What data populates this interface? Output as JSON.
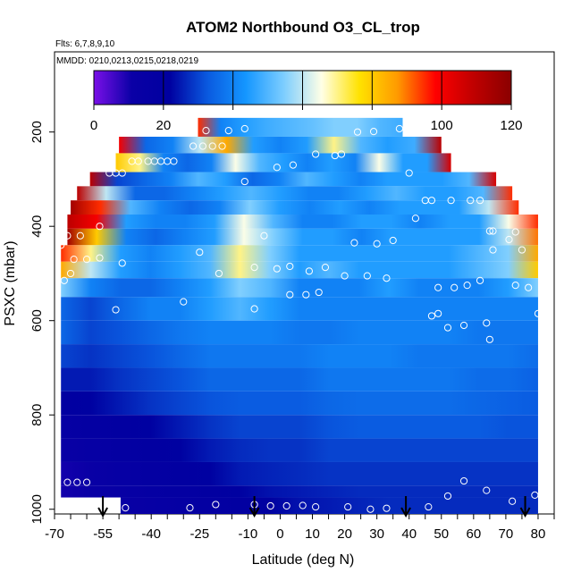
{
  "chart_data": {
    "type": "heatmap",
    "title": "ATOM2 Northbound O3_CL_trop",
    "subtitle_flights": "Flts: 6,7,8,9,10",
    "subtitle_dates": "MMDD: 0210,0213,0215,0218,0219",
    "xlabel": "Latitude (deg N)",
    "ylabel": "PSXC (mbar)",
    "xlim": [
      -70,
      85
    ],
    "ylim": [
      1010,
      30
    ],
    "x_ticks": [
      -70,
      -55,
      -40,
      -25,
      -10,
      0,
      10,
      20,
      30,
      40,
      50,
      60,
      70,
      80
    ],
    "x_minor_step": 5,
    "y_ticks": [
      200,
      400,
      600,
      800,
      1000
    ],
    "colorbar": {
      "min": 0,
      "max": 120,
      "ticks": [
        0,
        20,
        40,
        60,
        80,
        100,
        120
      ],
      "colors": [
        "#7a10e8",
        "#0a00a6",
        "#0000a0",
        "#0a5ae0",
        "#1496ff",
        "#7ccdff",
        "#ffffe6",
        "#ffe200",
        "#ff9a00",
        "#ff0000",
        "#c00000",
        "#8a0000"
      ]
    },
    "bands": [
      {
        "p_top": 170,
        "p_bot": 210,
        "x0": -25.5,
        "x1": 38,
        "values": [
          95,
          40,
          45,
          48,
          50,
          52,
          55,
          55,
          50,
          48
        ]
      },
      {
        "p_top": 210,
        "p_bot": 245,
        "x0": -50,
        "x1": 50,
        "values": [
          100,
          35,
          40,
          60,
          85,
          45,
          40,
          45,
          70,
          50,
          45,
          48,
          110
        ]
      },
      {
        "p_top": 245,
        "p_bot": 285,
        "x0": -51,
        "x1": 53,
        "values": [
          80,
          70,
          40,
          35,
          40,
          65,
          50,
          45,
          40,
          45,
          40,
          65,
          45,
          45,
          105
        ]
      },
      {
        "p_top": 285,
        "p_bot": 315,
        "x0": -59,
        "x1": 67,
        "values": [
          110,
          30,
          35,
          40,
          50,
          45,
          35,
          40,
          50,
          45,
          40,
          45,
          45,
          45,
          50,
          105
        ]
      },
      {
        "p_top": 315,
        "p_bot": 345,
        "x0": -63,
        "x1": 72,
        "values": [
          110,
          60,
          35,
          35,
          40,
          45,
          50,
          45,
          40,
          40,
          45,
          50,
          45,
          45,
          50,
          95
        ]
      },
      {
        "p_top": 345,
        "p_bot": 375,
        "x0": -65,
        "x1": 74,
        "values": [
          115,
          95,
          50,
          40,
          35,
          40,
          55,
          45,
          40,
          45,
          40,
          45,
          45,
          45,
          60,
          95
        ]
      },
      {
        "p_top": 375,
        "p_bot": 405,
        "x0": -66,
        "x1": 80,
        "values": [
          110,
          100,
          45,
          40,
          40,
          45,
          65,
          50,
          40,
          40,
          45,
          45,
          40,
          45,
          45,
          65,
          95
        ]
      },
      {
        "p_top": 405,
        "p_bot": 440,
        "x0": -66,
        "x1": 80,
        "values": [
          115,
          80,
          40,
          35,
          40,
          45,
          65,
          55,
          45,
          45,
          40,
          45,
          45,
          45,
          45,
          60,
          90
        ]
      },
      {
        "p_top": 440,
        "p_bot": 475,
        "x0": -68,
        "x1": 80,
        "values": [
          95,
          70,
          45,
          40,
          45,
          50,
          70,
          55,
          45,
          45,
          45,
          45,
          45,
          45,
          50,
          55,
          85
        ]
      },
      {
        "p_top": 475,
        "p_bot": 510,
        "x0": -68,
        "x1": 80,
        "values": [
          85,
          60,
          45,
          40,
          45,
          50,
          70,
          55,
          45,
          50,
          45,
          45,
          45,
          45,
          50,
          55,
          80
        ]
      },
      {
        "p_top": 510,
        "p_bot": 550,
        "x0": -68,
        "x1": 80,
        "values": [
          55,
          40,
          35,
          35,
          40,
          45,
          55,
          50,
          40,
          40,
          40,
          45,
          40,
          40,
          40,
          45,
          55
        ]
      },
      {
        "p_top": 550,
        "p_bot": 600,
        "x0": -68,
        "x1": 80,
        "values": [
          35,
          30,
          35,
          40,
          40,
          45,
          50,
          45,
          40,
          40,
          40,
          40,
          40,
          40,
          40,
          40,
          40
        ]
      },
      {
        "p_top": 600,
        "p_bot": 650,
        "x0": -68,
        "x1": 80,
        "values": [
          35,
          30,
          32,
          35,
          38,
          40,
          40,
          40,
          38,
          38,
          40,
          40,
          40,
          40,
          38,
          38,
          38
        ]
      },
      {
        "p_top": 650,
        "p_bot": 700,
        "x0": -68,
        "x1": 80,
        "values": [
          30,
          28,
          30,
          32,
          35,
          38,
          38,
          38,
          38,
          40,
          40,
          40,
          38,
          38,
          38,
          38,
          36
        ]
      },
      {
        "p_top": 700,
        "p_bot": 750,
        "x0": -68,
        "x1": 80,
        "values": [
          25,
          25,
          28,
          30,
          32,
          35,
          35,
          35,
          35,
          38,
          38,
          38,
          38,
          38,
          36,
          36,
          34
        ]
      },
      {
        "p_top": 750,
        "p_bot": 800,
        "x0": -68,
        "x1": 80,
        "values": [
          20,
          22,
          25,
          28,
          30,
          32,
          33,
          33,
          33,
          35,
          36,
          36,
          36,
          36,
          35,
          34,
          33
        ]
      },
      {
        "p_top": 800,
        "p_bot": 850,
        "x0": -68,
        "x1": 80,
        "values": [
          15,
          18,
          20,
          22,
          25,
          28,
          30,
          30,
          30,
          32,
          33,
          33,
          33,
          33,
          33,
          32,
          32
        ]
      },
      {
        "p_top": 850,
        "p_bot": 900,
        "x0": -68,
        "x1": 80,
        "values": [
          12,
          15,
          18,
          20,
          22,
          25,
          27,
          28,
          28,
          30,
          30,
          30,
          30,
          30,
          30,
          30,
          30
        ]
      },
      {
        "p_top": 900,
        "p_bot": 950,
        "x0": -68,
        "x1": 80,
        "values": [
          10,
          12,
          15,
          18,
          20,
          22,
          25,
          26,
          27,
          28,
          28,
          28,
          28,
          28,
          28,
          28,
          28
        ]
      },
      {
        "p_top": 950,
        "p_bot": 975,
        "x0": -68,
        "x1": 80,
        "values": [
          10,
          12,
          14,
          16,
          18,
          20,
          22,
          24,
          25,
          26,
          27,
          27,
          27,
          27,
          27,
          27,
          27
        ]
      },
      {
        "p_top": 975,
        "p_bot": 1010,
        "x0": -49.5,
        "x1": 80,
        "values": [
          12,
          14,
          16,
          18,
          20,
          22,
          24,
          25,
          26,
          27,
          27,
          27,
          27,
          27,
          27
        ]
      }
    ],
    "sample_points": [
      {
        "x": -23,
        "p": 197
      },
      {
        "x": -16,
        "p": 197
      },
      {
        "x": -11,
        "p": 193
      },
      {
        "x": 24,
        "p": 200
      },
      {
        "x": 29,
        "p": 199
      },
      {
        "x": 37,
        "p": 193
      },
      {
        "x": -27,
        "p": 230
      },
      {
        "x": -24,
        "p": 230
      },
      {
        "x": -21,
        "p": 230
      },
      {
        "x": -18,
        "p": 230
      },
      {
        "x": 11,
        "p": 247
      },
      {
        "x": 17,
        "p": 250
      },
      {
        "x": 19,
        "p": 247
      },
      {
        "x": -46,
        "p": 262
      },
      {
        "x": -44,
        "p": 262
      },
      {
        "x": -41,
        "p": 262
      },
      {
        "x": -39,
        "p": 262
      },
      {
        "x": -37,
        "p": 262
      },
      {
        "x": -35,
        "p": 262
      },
      {
        "x": -33,
        "p": 262
      },
      {
        "x": -1,
        "p": 275
      },
      {
        "x": 4,
        "p": 270
      },
      {
        "x": -53,
        "p": 287
      },
      {
        "x": -51,
        "p": 287
      },
      {
        "x": -49,
        "p": 287
      },
      {
        "x": 40,
        "p": 287
      },
      {
        "x": -11,
        "p": 305
      },
      {
        "x": 45,
        "p": 345
      },
      {
        "x": 47,
        "p": 345
      },
      {
        "x": 53,
        "p": 345
      },
      {
        "x": 59,
        "p": 345
      },
      {
        "x": 62,
        "p": 345
      },
      {
        "x": 42,
        "p": 383
      },
      {
        "x": -56,
        "p": 400
      },
      {
        "x": 65,
        "p": 410
      },
      {
        "x": 66,
        "p": 410
      },
      {
        "x": 73,
        "p": 412
      },
      {
        "x": -66,
        "p": 420
      },
      {
        "x": -62,
        "p": 420
      },
      {
        "x": -5,
        "p": 420
      },
      {
        "x": 71,
        "p": 428
      },
      {
        "x": 35,
        "p": 430
      },
      {
        "x": 23,
        "p": 435
      },
      {
        "x": 30,
        "p": 437
      },
      {
        "x": -68,
        "p": 440
      },
      {
        "x": 66,
        "p": 450
      },
      {
        "x": 75,
        "p": 450
      },
      {
        "x": -25,
        "p": 455
      },
      {
        "x": -64,
        "p": 470
      },
      {
        "x": -60,
        "p": 470
      },
      {
        "x": -56,
        "p": 467
      },
      {
        "x": -49,
        "p": 478
      },
      {
        "x": -8,
        "p": 487
      },
      {
        "x": -1,
        "p": 490
      },
      {
        "x": 3,
        "p": 485
      },
      {
        "x": 9,
        "p": 495
      },
      {
        "x": 14,
        "p": 487
      },
      {
        "x": -19,
        "p": 500
      },
      {
        "x": -65,
        "p": 500
      },
      {
        "x": -67,
        "p": 515
      },
      {
        "x": 20,
        "p": 505
      },
      {
        "x": 27,
        "p": 505
      },
      {
        "x": 33,
        "p": 510
      },
      {
        "x": 62,
        "p": 515
      },
      {
        "x": 58,
        "p": 525
      },
      {
        "x": 54,
        "p": 530
      },
      {
        "x": 49,
        "p": 530
      },
      {
        "x": 73,
        "p": 525
      },
      {
        "x": 77,
        "p": 530
      },
      {
        "x": 3,
        "p": 545
      },
      {
        "x": 8,
        "p": 545
      },
      {
        "x": 12,
        "p": 540
      },
      {
        "x": -30,
        "p": 560
      },
      {
        "x": -8,
        "p": 575
      },
      {
        "x": -51,
        "p": 577
      },
      {
        "x": 80,
        "p": 585
      },
      {
        "x": 47,
        "p": 590
      },
      {
        "x": 49,
        "p": 585
      },
      {
        "x": 64,
        "p": 605
      },
      {
        "x": 57,
        "p": 610
      },
      {
        "x": 52,
        "p": 615
      },
      {
        "x": 65,
        "p": 640
      },
      {
        "x": -66,
        "p": 943
      },
      {
        "x": -63,
        "p": 943
      },
      {
        "x": -60,
        "p": 943
      },
      {
        "x": 57,
        "p": 940
      },
      {
        "x": 64,
        "p": 960
      },
      {
        "x": 52,
        "p": 972
      },
      {
        "x": 79,
        "p": 970
      },
      {
        "x": 72,
        "p": 983
      },
      {
        "x": -48,
        "p": 997
      },
      {
        "x": -28,
        "p": 997
      },
      {
        "x": -20,
        "p": 990
      },
      {
        "x": -8,
        "p": 990
      },
      {
        "x": -3,
        "p": 993
      },
      {
        "x": 2,
        "p": 993
      },
      {
        "x": 7,
        "p": 992
      },
      {
        "x": 11,
        "p": 995
      },
      {
        "x": 21,
        "p": 995
      },
      {
        "x": 28,
        "p": 1000
      },
      {
        "x": 33,
        "p": 998
      },
      {
        "x": 46,
        "p": 995
      }
    ],
    "arrows": [
      -55,
      -8,
      39,
      76
    ]
  }
}
